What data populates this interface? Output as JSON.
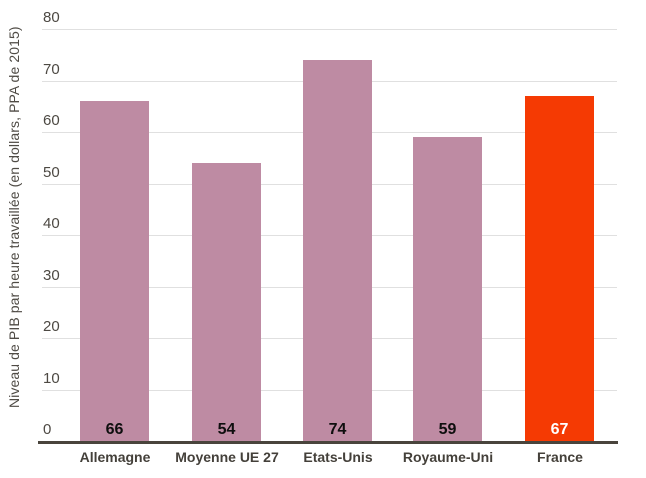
{
  "chart_data": {
    "type": "bar",
    "title": "",
    "xlabel": "",
    "ylabel": "Niveau de PIB par heure travaillée (en dollars, PPA de 2015)",
    "categories": [
      "Allemagne",
      "Moyenne UE 27",
      "Etats-Unis",
      "Royaume-Uni",
      "France"
    ],
    "values": [
      66,
      54,
      74,
      59,
      67
    ],
    "value_labels": [
      "66",
      "54",
      "74",
      "59",
      "67"
    ],
    "ylim": [
      0,
      80
    ],
    "yticks": [
      0,
      10,
      20,
      30,
      40,
      50,
      60,
      70,
      80
    ],
    "grid": true,
    "legend_position": "none",
    "highlight_category": "France",
    "bar_colors": [
      "#be8ba3",
      "#be8ba3",
      "#be8ba3",
      "#be8ba3",
      "#f53a03"
    ],
    "value_label_colors": [
      "#0e0e0e",
      "#0e0e0e",
      "#0e0e0e",
      "#0e0e0e",
      "#ffffff"
    ],
    "colors": {
      "bar_default": "#be8ba3",
      "bar_highlight": "#f53a03",
      "gridline": "#e0e0e0",
      "axis_line": "#49443c",
      "tick_text": "#4d4943",
      "category_text": "#44403a",
      "background": "#ffffff"
    }
  }
}
